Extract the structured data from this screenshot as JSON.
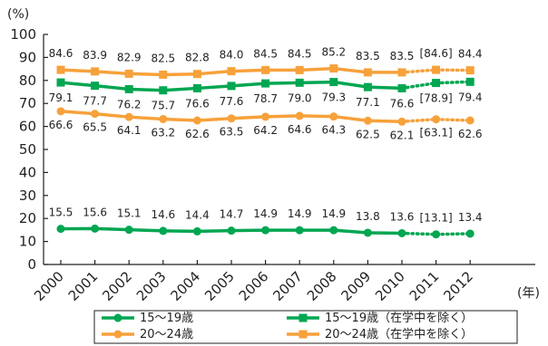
{
  "chart_data": {
    "type": "line",
    "ylabel": "(%)",
    "xlabel": "(年)",
    "ylim": [
      0,
      100
    ],
    "y_ticks": [
      0,
      10,
      20,
      30,
      40,
      50,
      60,
      70,
      80,
      90,
      100
    ],
    "categories": [
      "2000",
      "2001",
      "2002",
      "2003",
      "2004",
      "2005",
      "2006",
      "2007",
      "2008",
      "2009",
      "2010",
      "2011",
      "2012"
    ],
    "grid": false,
    "legend_position": "bottom",
    "series": [
      {
        "name": "15～19歳",
        "color": "#00a651",
        "marker": "circle",
        "values": [
          15.5,
          15.6,
          15.1,
          14.6,
          14.4,
          14.7,
          14.9,
          14.9,
          14.9,
          13.8,
          13.6,
          13.1,
          13.4
        ],
        "labels": [
          "15.5",
          "15.6",
          "15.1",
          "14.6",
          "14.4",
          "14.7",
          "14.9",
          "14.9",
          "14.9",
          "13.8",
          "13.6",
          "[13.1]",
          "13.4"
        ]
      },
      {
        "name": "20～24歳",
        "color": "#f7a13b",
        "marker": "circle",
        "values": [
          66.6,
          65.5,
          64.1,
          63.2,
          62.6,
          63.5,
          64.2,
          64.6,
          64.3,
          62.5,
          62.1,
          63.1,
          62.6
        ],
        "labels": [
          "66.6",
          "65.5",
          "64.1",
          "63.2",
          "62.6",
          "63.5",
          "64.2",
          "64.6",
          "64.3",
          "62.5",
          "62.1",
          "[63.1]",
          "62.6"
        ]
      },
      {
        "name": "15～19歳（在学中を除く）",
        "color": "#00a651",
        "marker": "square",
        "values": [
          79.1,
          77.7,
          76.2,
          75.7,
          76.6,
          77.6,
          78.7,
          79.0,
          79.3,
          77.1,
          76.6,
          78.9,
          79.4
        ],
        "labels": [
          "79.1",
          "77.7",
          "76.2",
          "75.7",
          "76.6",
          "77.6",
          "78.7",
          "79.0",
          "79.3",
          "77.1",
          "76.6",
          "[78.9]",
          "79.4"
        ]
      },
      {
        "name": "20～24歳（在学中を除く）",
        "color": "#f7a13b",
        "marker": "square",
        "values": [
          84.6,
          83.9,
          82.9,
          82.5,
          82.8,
          84.0,
          84.5,
          84.5,
          85.2,
          83.5,
          83.5,
          84.6,
          84.4
        ],
        "labels": [
          "84.6",
          "83.9",
          "82.9",
          "82.5",
          "82.8",
          "84.0",
          "84.5",
          "84.5",
          "85.2",
          "83.5",
          "83.5",
          "[84.6]",
          "84.4"
        ]
      }
    ],
    "dotted_from_index": 10
  }
}
